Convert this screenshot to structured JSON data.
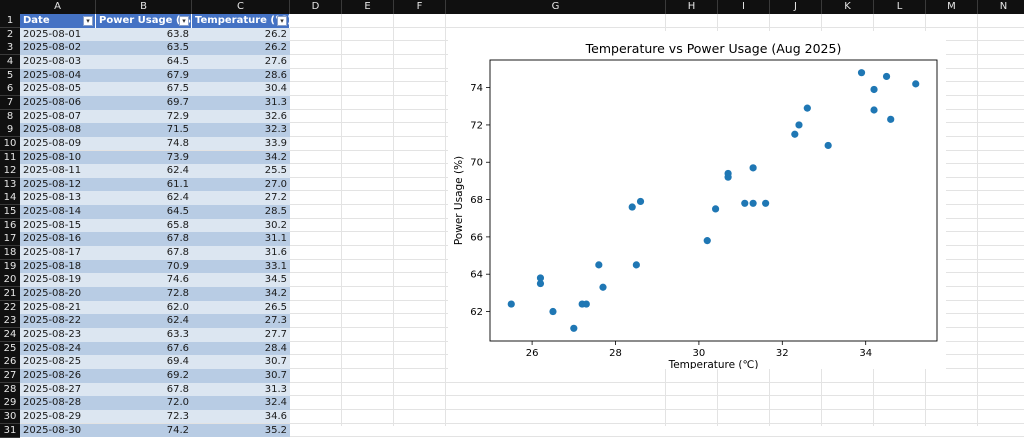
{
  "sheet": {
    "columns": [
      "A",
      "B",
      "C",
      "D",
      "E",
      "F",
      "G",
      "H",
      "I",
      "J",
      "K",
      "L",
      "M",
      "N"
    ],
    "headers": [
      "Date",
      "Power Usage (%)",
      "Temperature (℃)"
    ],
    "rows": [
      [
        "2025-08-01",
        "63.8",
        "26.2"
      ],
      [
        "2025-08-02",
        "63.5",
        "26.2"
      ],
      [
        "2025-08-03",
        "64.5",
        "27.6"
      ],
      [
        "2025-08-04",
        "67.9",
        "28.6"
      ],
      [
        "2025-08-05",
        "67.5",
        "30.4"
      ],
      [
        "2025-08-06",
        "69.7",
        "31.3"
      ],
      [
        "2025-08-07",
        "72.9",
        "32.6"
      ],
      [
        "2025-08-08",
        "71.5",
        "32.3"
      ],
      [
        "2025-08-09",
        "74.8",
        "33.9"
      ],
      [
        "2025-08-10",
        "73.9",
        "34.2"
      ],
      [
        "2025-08-11",
        "62.4",
        "25.5"
      ],
      [
        "2025-08-12",
        "61.1",
        "27.0"
      ],
      [
        "2025-08-13",
        "62.4",
        "27.2"
      ],
      [
        "2025-08-14",
        "64.5",
        "28.5"
      ],
      [
        "2025-08-15",
        "65.8",
        "30.2"
      ],
      [
        "2025-08-16",
        "67.8",
        "31.1"
      ],
      [
        "2025-08-17",
        "67.8",
        "31.6"
      ],
      [
        "2025-08-18",
        "70.9",
        "33.1"
      ],
      [
        "2025-08-19",
        "74.6",
        "34.5"
      ],
      [
        "2025-08-20",
        "72.8",
        "34.2"
      ],
      [
        "2025-08-21",
        "62.0",
        "26.5"
      ],
      [
        "2025-08-22",
        "62.4",
        "27.3"
      ],
      [
        "2025-08-23",
        "63.3",
        "27.7"
      ],
      [
        "2025-08-24",
        "67.6",
        "28.4"
      ],
      [
        "2025-08-25",
        "69.4",
        "30.7"
      ],
      [
        "2025-08-26",
        "69.2",
        "30.7"
      ],
      [
        "2025-08-27",
        "67.8",
        "31.3"
      ],
      [
        "2025-08-28",
        "72.0",
        "32.4"
      ],
      [
        "2025-08-29",
        "72.3",
        "34.6"
      ],
      [
        "2025-08-30",
        "74.2",
        "35.2"
      ]
    ],
    "colors": {
      "header": "#4472c4",
      "band_light": "#dce6f1",
      "band_dark": "#b8cce4"
    }
  },
  "chart_data": {
    "type": "scatter",
    "title": "Temperature vs Power Usage (Aug 2025)",
    "xlabel": "Temperature (℃)",
    "ylabel": "Power Usage (%)",
    "xlim": [
      24.99,
      35.71
    ],
    "ylim": [
      60.42,
      75.48
    ],
    "xticks": [
      "26",
      "28",
      "30",
      "32",
      "34"
    ],
    "yticks": [
      "62",
      "64",
      "66",
      "68",
      "70",
      "72",
      "74"
    ],
    "grid": false,
    "marker_color": "#1f77b4",
    "points": [
      [
        26.2,
        63.8
      ],
      [
        26.2,
        63.5
      ],
      [
        27.6,
        64.5
      ],
      [
        28.6,
        67.9
      ],
      [
        30.4,
        67.5
      ],
      [
        31.3,
        69.7
      ],
      [
        32.6,
        72.9
      ],
      [
        32.3,
        71.5
      ],
      [
        33.9,
        74.8
      ],
      [
        34.2,
        73.9
      ],
      [
        25.5,
        62.4
      ],
      [
        27.0,
        61.1
      ],
      [
        27.2,
        62.4
      ],
      [
        28.5,
        64.5
      ],
      [
        30.2,
        65.8
      ],
      [
        31.1,
        67.8
      ],
      [
        31.6,
        67.8
      ],
      [
        33.1,
        70.9
      ],
      [
        34.5,
        74.6
      ],
      [
        34.2,
        72.8
      ],
      [
        26.5,
        62.0
      ],
      [
        27.3,
        62.4
      ],
      [
        27.7,
        63.3
      ],
      [
        28.4,
        67.6
      ],
      [
        30.7,
        69.4
      ],
      [
        30.7,
        69.2
      ],
      [
        31.3,
        67.8
      ],
      [
        32.4,
        72.0
      ],
      [
        34.6,
        72.3
      ],
      [
        35.2,
        74.2
      ]
    ]
  }
}
